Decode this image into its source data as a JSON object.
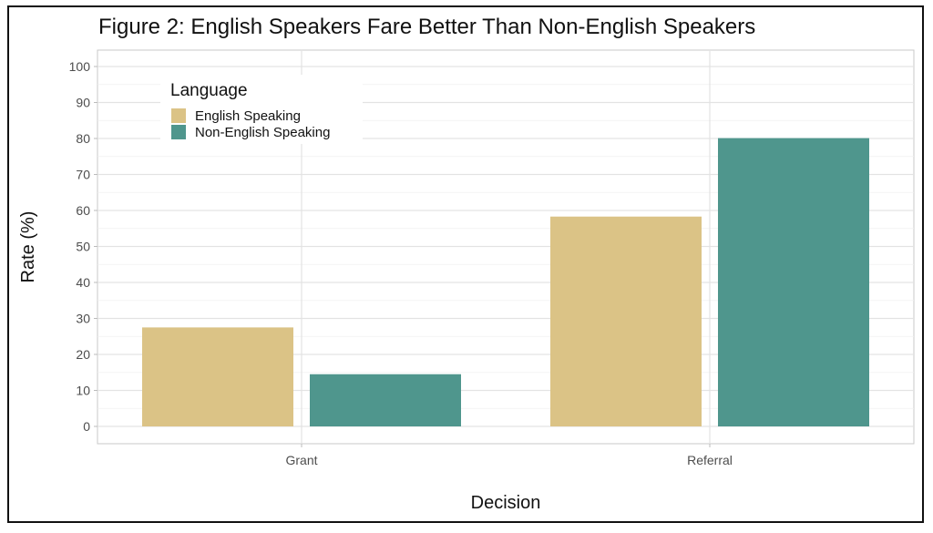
{
  "chart_data": {
    "type": "bar",
    "title": "Figure 2: English Speakers Fare Better Than Non-English Speakers",
    "xlabel": "Decision",
    "ylabel": "Rate (%)",
    "categories": [
      "Grant",
      "Referral"
    ],
    "series": [
      {
        "name": "English Speaking",
        "values": [
          27.5,
          58.3
        ],
        "color": "#dbc386"
      },
      {
        "name": "Non-English Speaking",
        "values": [
          14.5,
          80.1
        ],
        "color": "#4f968d"
      }
    ],
    "ylim": [
      0,
      100
    ],
    "yticks": [
      0,
      10,
      20,
      30,
      40,
      50,
      60,
      70,
      80,
      90,
      100
    ],
    "grid": true,
    "legend": {
      "title": "Language",
      "position": "top-left"
    }
  }
}
